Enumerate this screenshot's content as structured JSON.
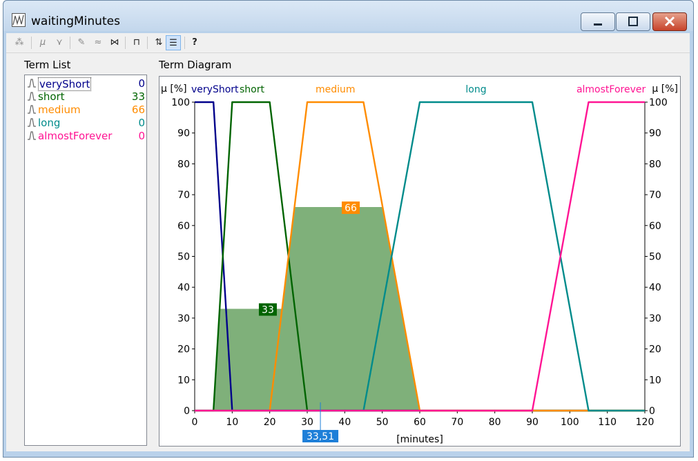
{
  "window": {
    "title": "waitingMinutes"
  },
  "panels": {
    "term_list_label": "Term List",
    "term_diagram_label": "Term Diagram"
  },
  "terms": [
    {
      "name": "veryShort",
      "value": "0",
      "color": "#00008b"
    },
    {
      "name": "short",
      "value": "33",
      "color": "#006400"
    },
    {
      "name": "medium",
      "value": "66",
      "color": "#ff8c00"
    },
    {
      "name": "long",
      "value": "0",
      "color": "#008b8b"
    },
    {
      "name": "almostForever",
      "value": "0",
      "color": "#ff1493"
    }
  ],
  "chart_data": {
    "type": "line",
    "ylabel_left": "μ [%]",
    "ylabel_right": "μ [%]",
    "xlabel": "[minutes]",
    "xlim": [
      0,
      120
    ],
    "ylim": [
      0,
      100
    ],
    "xticks": [
      0,
      10,
      20,
      30,
      40,
      50,
      60,
      70,
      80,
      90,
      100,
      110,
      120
    ],
    "yticks": [
      0,
      10,
      20,
      30,
      40,
      50,
      60,
      70,
      80,
      90,
      100
    ],
    "series": [
      {
        "name": "veryShort",
        "color": "#00008b",
        "points": [
          [
            0,
            100
          ],
          [
            5,
            100
          ],
          [
            10,
            0
          ],
          [
            120,
            0
          ]
        ]
      },
      {
        "name": "short",
        "color": "#006400",
        "points": [
          [
            0,
            0
          ],
          [
            5,
            0
          ],
          [
            10,
            100
          ],
          [
            20,
            100
          ],
          [
            30,
            0
          ],
          [
            120,
            0
          ]
        ]
      },
      {
        "name": "medium",
        "color": "#ff8c00",
        "points": [
          [
            0,
            0
          ],
          [
            20,
            0
          ],
          [
            30,
            100
          ],
          [
            45,
            100
          ],
          [
            60,
            0
          ],
          [
            120,
            0
          ]
        ]
      },
      {
        "name": "long",
        "color": "#008b8b",
        "points": [
          [
            0,
            0
          ],
          [
            45,
            0
          ],
          [
            60,
            100
          ],
          [
            90,
            100
          ],
          [
            105,
            0
          ],
          [
            120,
            0
          ]
        ]
      },
      {
        "name": "almostForever",
        "color": "#ff1493",
        "points": [
          [
            0,
            0
          ],
          [
            90,
            0
          ],
          [
            105,
            100
          ],
          [
            120,
            100
          ]
        ]
      }
    ],
    "activation": [
      {
        "term": "short",
        "value": 33,
        "label": "33",
        "color": "#006400"
      },
      {
        "term": "medium",
        "value": 66,
        "label": "66",
        "color": "#ff8c00"
      }
    ],
    "fill_color": "#7fb07a",
    "crisp_value": 33.51,
    "crisp_label": "33,51",
    "crisp_color": "#1e7fd8"
  }
}
